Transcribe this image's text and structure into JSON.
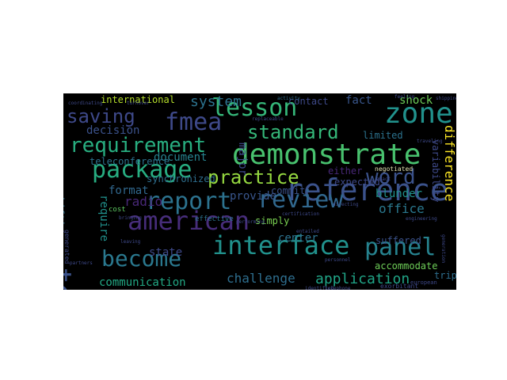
{
  "colors": {
    "background": "#000000",
    "page": "#ffffff"
  },
  "words": [
    "demonstrate",
    "reference",
    "american",
    "interface",
    "package",
    "review",
    "report",
    "requirement",
    "standard",
    "lesson",
    "become",
    "panel",
    "team",
    "zone",
    "fmea",
    "practice",
    "saving",
    "word",
    "application",
    "challenge",
    "communication",
    "system",
    "international",
    "decision",
    "document",
    "format",
    "radio",
    "provide",
    "center",
    "office",
    "difference",
    "variability",
    "blunder",
    "limited",
    "fact",
    "shock",
    "contact",
    "major",
    "require",
    "state",
    "teleconference",
    "synchronized",
    "commit",
    "simply",
    "expected",
    "either",
    "negotiated",
    "accommodate",
    "suffered",
    "trip",
    "effective",
    "cost",
    "shifting",
    "generated",
    "partners",
    "european",
    "exorbitant",
    "telephone",
    "identified",
    "personnel",
    "entailed",
    "certification",
    "activity",
    "turnover",
    "coordinating",
    "traveling",
    "exact",
    "directing",
    "performing",
    "engineering",
    "bringing",
    "leaving",
    "replaceable",
    "generation",
    "feeling",
    "shipping"
  ]
}
